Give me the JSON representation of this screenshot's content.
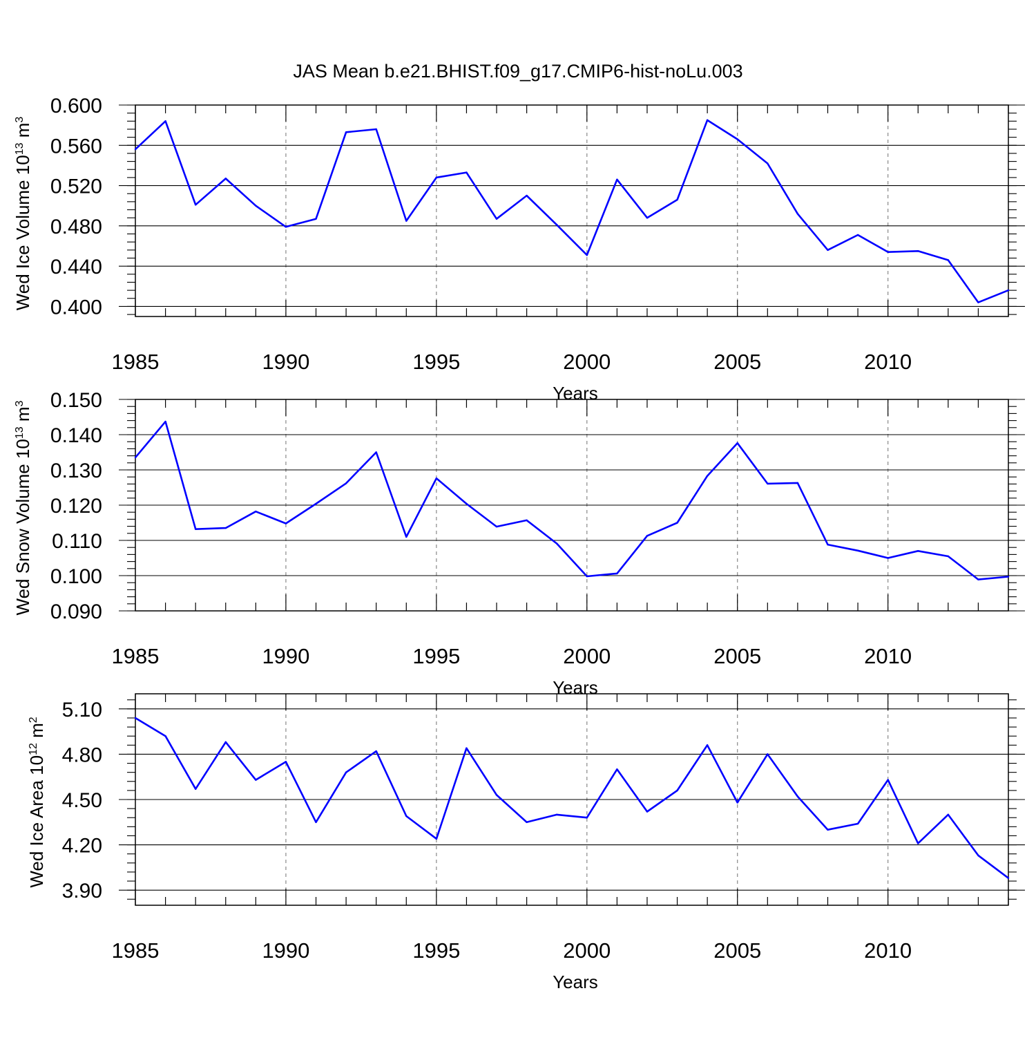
{
  "figure": {
    "title": "JAS Mean b.e21.BHIST.f09_g17.CMIP6-hist-noLu.003",
    "line_color": "#0000ff"
  },
  "chart_data": [
    {
      "type": "line",
      "xlabel": "Years",
      "ylabel": {
        "base": "Wed Ice Volume 10",
        "exp": "13",
        "unit": " m",
        "unit_exp": "3"
      },
      "xlim": [
        1985,
        2014
      ],
      "ylim": [
        0.39,
        0.6
      ],
      "xticks": [
        1985,
        1990,
        1995,
        2000,
        2005,
        2010
      ],
      "yticks": [
        "0.400",
        "0.440",
        "0.480",
        "0.520",
        "0.560",
        "0.600"
      ],
      "grid": "dashed vertical at major x ticks",
      "x": [
        1985,
        1986,
        1987,
        1988,
        1989,
        1990,
        1991,
        1992,
        1993,
        1994,
        1995,
        1996,
        1997,
        1998,
        1999,
        2000,
        2001,
        2002,
        2003,
        2004,
        2005,
        2006,
        2007,
        2008,
        2009,
        2010,
        2011,
        2012,
        2013,
        2014
      ],
      "values": [
        0.556,
        0.584,
        0.501,
        0.527,
        0.5,
        0.479,
        0.487,
        0.573,
        0.576,
        0.485,
        0.528,
        0.533,
        0.487,
        0.51,
        0.481,
        0.451,
        0.526,
        0.488,
        0.506,
        0.585,
        0.566,
        0.542,
        0.492,
        0.456,
        0.471,
        0.454,
        0.455,
        0.446,
        0.404,
        0.416
      ]
    },
    {
      "type": "line",
      "xlabel": "Years",
      "ylabel": {
        "base": "Wed Snow Volume 10",
        "exp": "13",
        "unit": " m",
        "unit_exp": "3"
      },
      "xlim": [
        1985,
        2014
      ],
      "ylim": [
        0.09,
        0.15
      ],
      "xticks": [
        1985,
        1990,
        1995,
        2000,
        2005,
        2010
      ],
      "yticks": [
        "0.090",
        "0.100",
        "0.110",
        "0.120",
        "0.130",
        "0.140",
        "0.150"
      ],
      "grid": "dashed vertical at major x ticks",
      "x": [
        1985,
        1986,
        1987,
        1988,
        1989,
        1990,
        1991,
        1992,
        1993,
        1994,
        1995,
        1996,
        1997,
        1998,
        1999,
        2000,
        2001,
        2002,
        2003,
        2004,
        2005,
        2006,
        2007,
        2008,
        2009,
        2010,
        2011,
        2012,
        2013,
        2014
      ],
      "values": [
        0.1335,
        0.1437,
        0.1132,
        0.1135,
        0.1182,
        0.1148,
        0.1204,
        0.1262,
        0.135,
        0.111,
        0.1276,
        0.1204,
        0.1139,
        0.1157,
        0.1091,
        0.0998,
        0.1006,
        0.1113,
        0.115,
        0.1283,
        0.1376,
        0.1261,
        0.1263,
        0.1088,
        0.1071,
        0.105,
        0.107,
        0.1055,
        0.0989,
        0.0997
      ]
    },
    {
      "type": "line",
      "xlabel": "Years",
      "ylabel": {
        "base": "Wed Ice Area 10",
        "exp": "12",
        "unit": " m",
        "unit_exp": "2"
      },
      "xlim": [
        1985,
        2014
      ],
      "ylim": [
        3.8,
        5.2
      ],
      "xticks": [
        1985,
        1990,
        1995,
        2000,
        2005,
        2010
      ],
      "yticks": [
        "3.90",
        "4.20",
        "4.50",
        "4.80",
        "5.10"
      ],
      "grid": "dashed vertical at major x ticks",
      "x": [
        1985,
        1986,
        1987,
        1988,
        1989,
        1990,
        1991,
        1992,
        1993,
        1994,
        1995,
        1996,
        1997,
        1998,
        1999,
        2000,
        2001,
        2002,
        2003,
        2004,
        2005,
        2006,
        2007,
        2008,
        2009,
        2010,
        2011,
        2012,
        2013,
        2014
      ],
      "values": [
        5.04,
        4.92,
        4.57,
        4.88,
        4.63,
        4.75,
        4.35,
        4.68,
        4.82,
        4.39,
        4.24,
        4.84,
        4.53,
        4.35,
        4.4,
        4.38,
        4.7,
        4.42,
        4.56,
        4.86,
        4.48,
        4.8,
        4.52,
        4.3,
        4.34,
        4.63,
        4.21,
        4.4,
        4.13,
        3.98
      ]
    }
  ]
}
